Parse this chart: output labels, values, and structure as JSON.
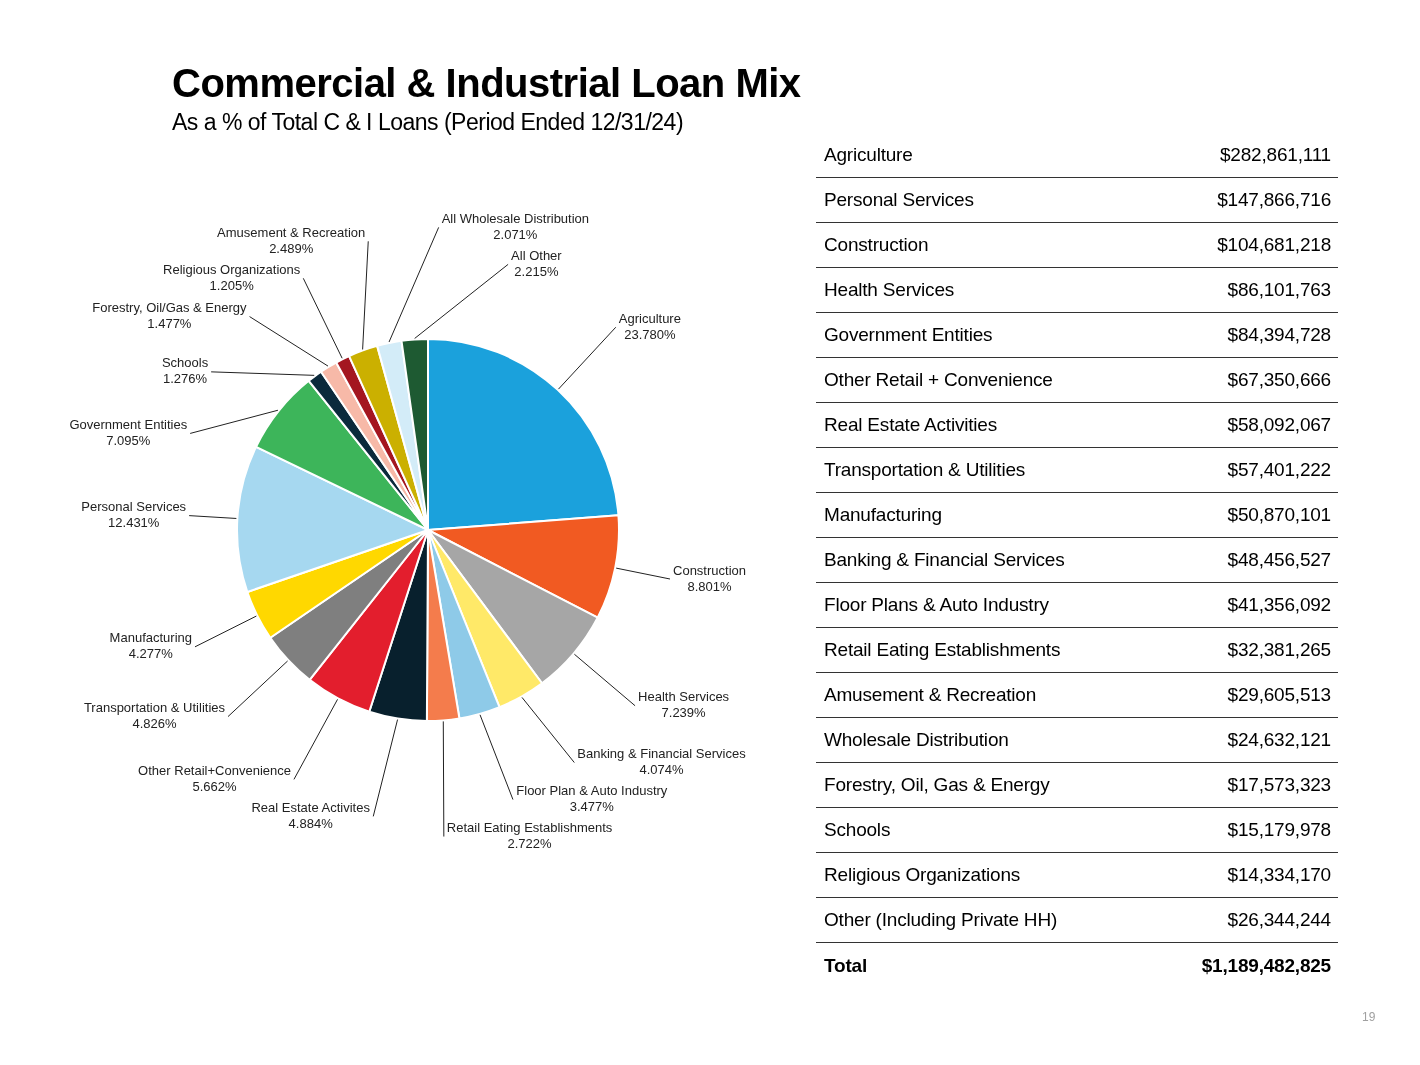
{
  "chart_data": [
    {
      "type": "pie",
      "title": "Commercial & Industrial Loan Mix",
      "subtitle": "As a % of Total C & I Loans (Period Ended 12/31/24)",
      "categories": [
        "Agriculture",
        "Construction",
        "Health Services",
        "Banking & Financial Services",
        "Floor Plan & Auto Industry",
        "Retail Eating Establishments",
        "Real Estate Activites",
        "Other Retail+Convenience",
        "Transportation & Utilities",
        "Manufacturing",
        "Personal Services",
        "Government Entities",
        "Schools",
        "Forestry, Oil/Gas & Energy",
        "Religious Organizations",
        "Amusement & Recreation",
        "All Wholesale Distribution",
        "All Other"
      ],
      "values": [
        23.78,
        8.801,
        7.239,
        4.074,
        3.477,
        2.722,
        4.884,
        5.662,
        4.826,
        4.277,
        12.431,
        7.095,
        1.276,
        1.477,
        1.205,
        2.489,
        2.071,
        2.215
      ],
      "value_labels": [
        "23.780%",
        "8.801%",
        "7.239%",
        "4.074%",
        "3.477%",
        "2.722%",
        "4.884%",
        "5.662%",
        "4.826%",
        "4.277%",
        "12.431%",
        "7.095%",
        "1.276%",
        "1.477%",
        "1.205%",
        "2.489%",
        "2.071%",
        "2.215%"
      ],
      "colors": [
        "#1ba1dc",
        "#f15a22",
        "#a6a6a6",
        "#ffe968",
        "#8ecae8",
        "#f47c4c",
        "#08202d",
        "#e31e2d",
        "#7f7f7f",
        "#ffd800",
        "#a6d8f0",
        "#3db55a",
        "#0b2a3c",
        "#f7b9a8",
        "#a41620",
        "#cbb000",
        "#d3ecf8",
        "#1e5a32"
      ],
      "annotations": [
        "19"
      ]
    },
    {
      "type": "other",
      "categories": [
        "Agriculture",
        "Personal Services",
        "Construction",
        "Health Services",
        "Government Entities",
        "Other Retail + Convenience",
        "Real Estate Activities",
        "Transportation & Utilities",
        "Manufacturing",
        "Banking & Financial Services",
        "Floor Plans & Auto Industry",
        "Retail Eating Establishments",
        "Amusement & Recreation",
        "Wholesale Distribution",
        "Forestry, Oil, Gas & Energy",
        "Schools",
        "Religious Organizations",
        "Other (Including Private HH)",
        "Total"
      ],
      "value_labels": [
        "$282,861,111",
        "$147,866,716",
        "$104,681,218",
        "$86,101,763",
        "$84,394,728",
        "$67,350,666",
        "$58,092,067",
        "$57,401,222",
        "$50,870,101",
        "$48,456,527",
        "$41,356,092",
        "$32,381,265",
        "$29,605,513",
        "$24,632,121",
        "$17,573,323",
        "$15,179,978",
        "$14,334,170",
        "$26,344,244",
        "$1,189,482,825"
      ]
    }
  ]
}
